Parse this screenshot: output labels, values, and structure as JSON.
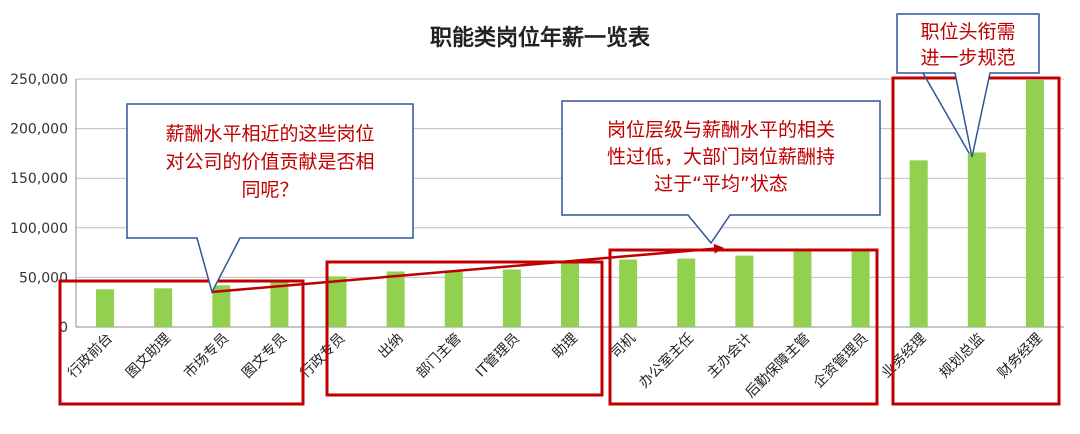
{
  "chart_data": {
    "type": "bar",
    "title": "职能类岗位年薪一览表",
    "categories": [
      "行政前台",
      "图文助理",
      "市场专员",
      "图文专员",
      "行政专员",
      "出纳",
      "部门主管",
      "IT管理员",
      "助理",
      "司机",
      "办公室主任",
      "主办会计",
      "后勤保障主管",
      "企资管理员",
      "业务经理",
      "规划总监",
      "财务经理"
    ],
    "values": [
      38000,
      39000,
      42000,
      47000,
      51000,
      56000,
      57000,
      58000,
      66000,
      68000,
      69000,
      72000,
      76000,
      76000,
      168000,
      176000,
      249000
    ],
    "ylim": [
      0,
      250000
    ],
    "yticks": [
      "0",
      "50,000",
      "100,000",
      "150,000",
      "200,000",
      "250,000"
    ],
    "grid": true,
    "bar_color": "#92d050",
    "accent_color": "#c00000"
  },
  "callouts": [
    {
      "lines": [
        "薪酬水平相近的这些岗位",
        "对公司的价值贡献是否相",
        "同呢？"
      ]
    },
    {
      "lines": [
        "岗位层级与薪酬水平的相关",
        "性过低，大部门岗位薪酬持",
        "过于“平均”状态"
      ]
    },
    {
      "lines": [
        "职位头衔需",
        "进一步规范"
      ]
    }
  ]
}
